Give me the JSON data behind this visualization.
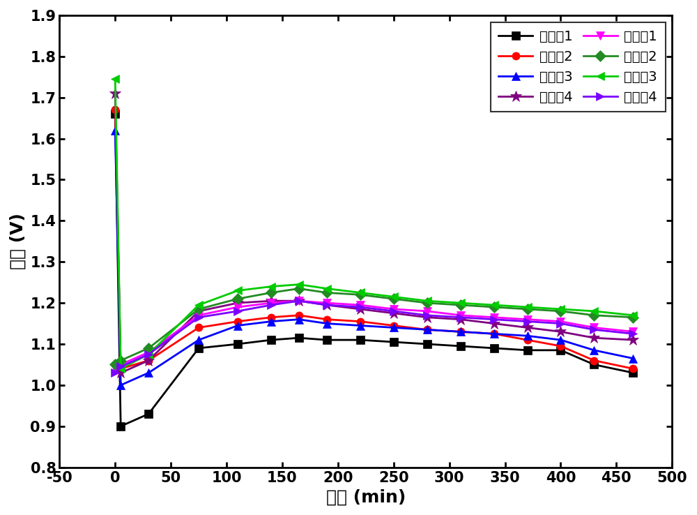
{
  "title": "",
  "xlabel": "时间 (min)",
  "ylabel": "电压 (V)",
  "xlim": [
    -50,
    500
  ],
  "ylim": [
    0.8,
    1.9
  ],
  "xticks": [
    -50,
    0,
    50,
    100,
    150,
    200,
    250,
    300,
    350,
    400,
    450,
    500
  ],
  "yticks": [
    0.8,
    0.9,
    1.0,
    1.1,
    1.2,
    1.3,
    1.4,
    1.5,
    1.6,
    1.7,
    1.8,
    1.9
  ],
  "series": [
    {
      "label": "对比例1",
      "color": "#000000",
      "marker": "s",
      "marker_size": 8,
      "x": [
        0,
        5,
        30,
        75,
        110,
        140,
        165,
        190,
        220,
        250,
        280,
        310,
        340,
        370,
        400,
        430,
        465
      ],
      "y": [
        1.66,
        0.9,
        0.93,
        1.09,
        1.1,
        1.11,
        1.115,
        1.11,
        1.11,
        1.105,
        1.1,
        1.095,
        1.09,
        1.085,
        1.085,
        1.05,
        1.03
      ]
    },
    {
      "label": "对比例2",
      "color": "#FF0000",
      "marker": "o",
      "marker_size": 8,
      "x": [
        0,
        5,
        30,
        75,
        110,
        140,
        165,
        190,
        220,
        250,
        280,
        310,
        340,
        370,
        400,
        430,
        465
      ],
      "y": [
        1.67,
        1.04,
        1.06,
        1.14,
        1.155,
        1.165,
        1.17,
        1.16,
        1.155,
        1.145,
        1.135,
        1.13,
        1.125,
        1.11,
        1.095,
        1.06,
        1.04
      ]
    },
    {
      "label": "对比例3",
      "color": "#0000FF",
      "marker": "^",
      "marker_size": 8,
      "x": [
        0,
        5,
        30,
        75,
        110,
        140,
        165,
        190,
        220,
        250,
        280,
        310,
        340,
        370,
        400,
        430,
        465
      ],
      "y": [
        1.62,
        1.0,
        1.03,
        1.11,
        1.145,
        1.155,
        1.16,
        1.15,
        1.145,
        1.14,
        1.135,
        1.13,
        1.125,
        1.12,
        1.11,
        1.085,
        1.065
      ]
    },
    {
      "label": "对比例4",
      "color": "#800080",
      "marker": "*",
      "marker_size": 12,
      "x": [
        0,
        5,
        30,
        75,
        110,
        140,
        165,
        190,
        220,
        250,
        280,
        310,
        340,
        370,
        400,
        430,
        465
      ],
      "y": [
        1.71,
        1.03,
        1.06,
        1.18,
        1.2,
        1.205,
        1.205,
        1.195,
        1.185,
        1.175,
        1.165,
        1.16,
        1.15,
        1.14,
        1.13,
        1.115,
        1.11
      ]
    },
    {
      "label": "实施例1",
      "color": "#FF00FF",
      "marker": "v",
      "marker_size": 9,
      "x": [
        0,
        5,
        30,
        75,
        110,
        140,
        165,
        190,
        220,
        250,
        280,
        310,
        340,
        370,
        400,
        430,
        465
      ],
      "y": [
        1.04,
        1.05,
        1.08,
        1.17,
        1.19,
        1.2,
        1.205,
        1.2,
        1.195,
        1.185,
        1.18,
        1.17,
        1.165,
        1.16,
        1.155,
        1.14,
        1.13
      ]
    },
    {
      "label": "实施例2",
      "color": "#228B22",
      "marker": "D",
      "marker_size": 8,
      "x": [
        0,
        5,
        30,
        75,
        110,
        140,
        165,
        190,
        220,
        250,
        280,
        310,
        340,
        370,
        400,
        430,
        465
      ],
      "y": [
        1.05,
        1.06,
        1.09,
        1.185,
        1.21,
        1.225,
        1.235,
        1.225,
        1.22,
        1.21,
        1.2,
        1.195,
        1.19,
        1.185,
        1.18,
        1.17,
        1.165
      ]
    },
    {
      "label": "实施例3",
      "color": "#00CC00",
      "marker": "<",
      "marker_size": 9,
      "x": [
        0,
        5,
        30,
        75,
        110,
        140,
        165,
        190,
        220,
        250,
        280,
        310,
        340,
        370,
        400,
        430,
        465
      ],
      "y": [
        1.745,
        1.04,
        1.075,
        1.195,
        1.23,
        1.24,
        1.245,
        1.235,
        1.225,
        1.215,
        1.205,
        1.2,
        1.195,
        1.19,
        1.185,
        1.18,
        1.17
      ]
    },
    {
      "label": "实施例4",
      "color": "#7B00FF",
      "marker": ">",
      "marker_size": 9,
      "x": [
        0,
        5,
        30,
        75,
        110,
        140,
        165,
        190,
        220,
        250,
        280,
        310,
        340,
        370,
        400,
        430,
        465
      ],
      "y": [
        1.03,
        1.045,
        1.075,
        1.165,
        1.18,
        1.195,
        1.205,
        1.195,
        1.19,
        1.18,
        1.17,
        1.165,
        1.16,
        1.155,
        1.15,
        1.135,
        1.125
      ]
    }
  ],
  "legend_order": [
    0,
    1,
    2,
    3,
    4,
    5,
    6,
    7
  ],
  "legend_fontsize": 14,
  "axis_fontsize": 18,
  "tick_fontsize": 15,
  "linewidth": 2.0,
  "background_color": "#ffffff"
}
